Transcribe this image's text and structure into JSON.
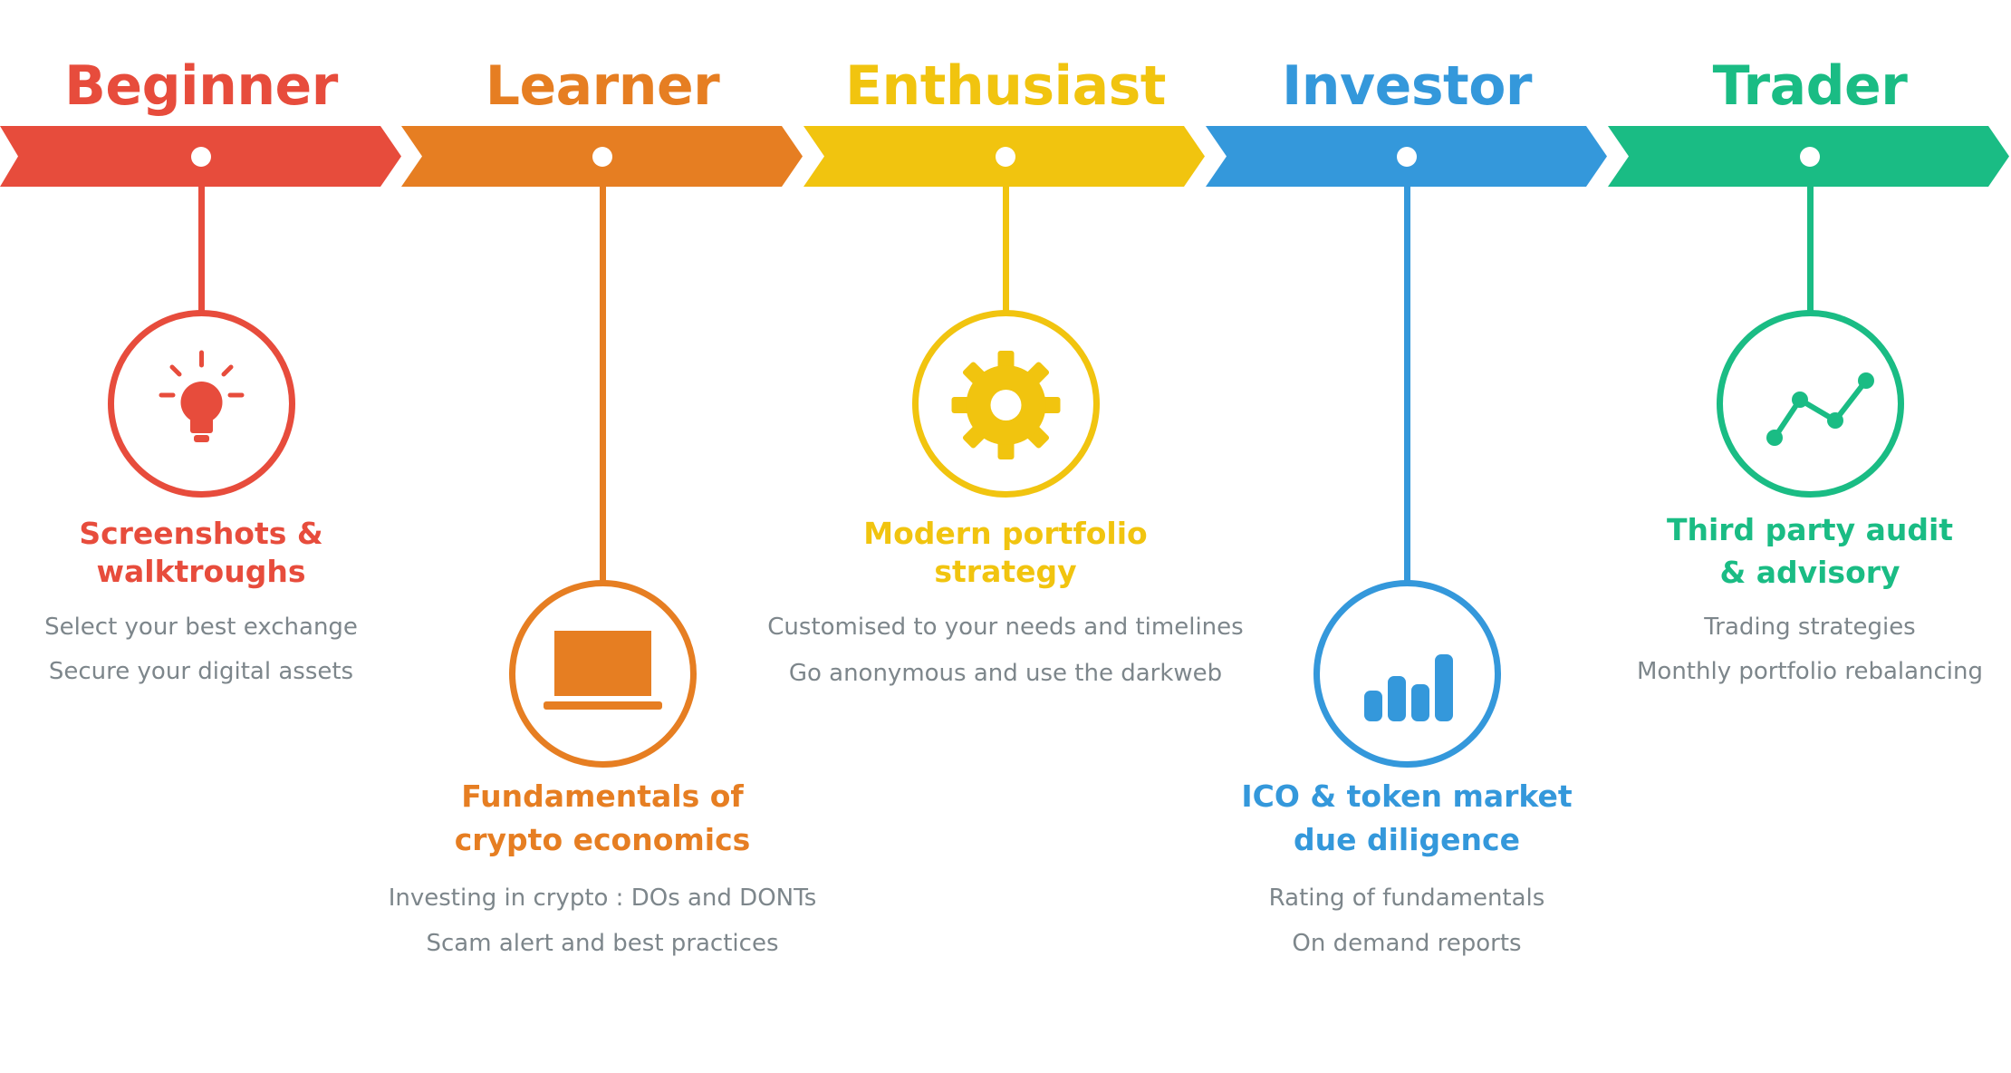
{
  "colors": {
    "beginner": "#e74c3c",
    "learner": "#e67e22",
    "enthusiast": "#f1c40f",
    "investor": "#3498db",
    "trader": "#1abc84",
    "detail_text": "#7d868b"
  },
  "stages": [
    {
      "title": "Beginner",
      "icon": "lightbulb-icon",
      "feature_line1": "Screenshots &",
      "feature_line2": "walktroughs",
      "detail1": "Select your best exchange",
      "detail2": "Secure your digital assets"
    },
    {
      "title": "Learner",
      "icon": "laptop-icon",
      "feature_line1": "Fundamentals of",
      "feature_line2": "crypto economics",
      "detail1": "Investing in crypto : DOs and DONTs",
      "detail2": "Scam alert and best practices"
    },
    {
      "title": "Enthusiast",
      "icon": "gear-icon",
      "feature_line1": "Modern portfolio",
      "feature_line2": "strategy",
      "detail1": "Customised to your needs and timelines",
      "detail2": "Go anonymous and use the darkweb"
    },
    {
      "title": "Investor",
      "icon": "bar-chart-icon",
      "feature_line1": "ICO & token market",
      "feature_line2": "due diligence",
      "detail1": "Rating of fundamentals",
      "detail2": "On demand reports"
    },
    {
      "title": "Trader",
      "icon": "line-chart-icon",
      "feature_line1": "Third party audit",
      "feature_line2": "& advisory",
      "detail1": "Trading strategies",
      "detail2": "Monthly portfolio rebalancing"
    }
  ]
}
